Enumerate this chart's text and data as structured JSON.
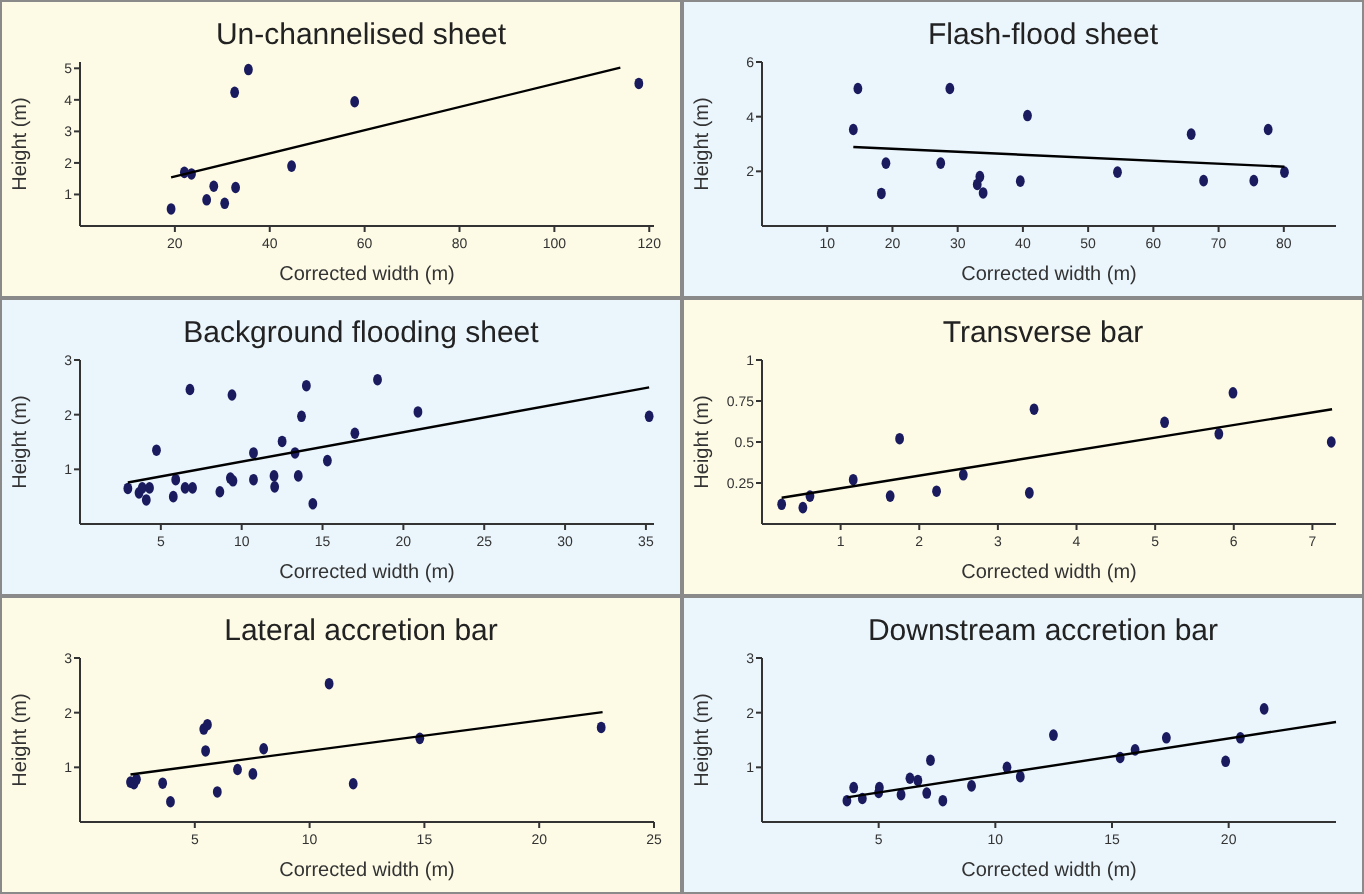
{
  "chart_data": [
    {
      "type": "scatter",
      "title": "Un-channelised sheet",
      "xlabel": "Corrected width (m)",
      "ylabel": "Height (m)",
      "xlim": [
        0,
        121
      ],
      "ylim": [
        0,
        5.2
      ],
      "xticks": [
        20,
        40,
        60,
        80,
        100,
        120
      ],
      "yticks": [
        1,
        2,
        3,
        4,
        5
      ],
      "grid": false,
      "series": [
        {
          "color": "#1a1a5e",
          "marker": "circle",
          "x": [
            19.2,
            22.0,
            23.5,
            26.7,
            28.2,
            30.5,
            32.8,
            32.6,
            35.5,
            44.6,
            57.9,
            117.8
          ],
          "values": [
            0.54,
            1.7,
            1.65,
            0.83,
            1.26,
            0.72,
            1.22,
            4.24,
            4.96,
            1.9,
            3.94,
            4.52
          ]
        },
        {
          "type": "line",
          "color": "#000000",
          "marker": "none",
          "line_style": "solid",
          "x": [
            19.2,
            113.9
          ],
          "values": [
            1.54,
            5.02
          ]
        }
      ]
    },
    {
      "type": "scatter",
      "title": "Flash-flood sheet",
      "xlabel": "Corrected width (m)",
      "ylabel": "Height (m)",
      "xlim": [
        0,
        88
      ],
      "ylim": [
        0,
        6
      ],
      "xticks": [
        10,
        20,
        30,
        40,
        50,
        60,
        70,
        80
      ],
      "yticks": [
        2,
        4,
        6
      ],
      "grid": false,
      "series": [
        {
          "color": "#1a1a5e",
          "marker": "circle",
          "x": [
            14.0,
            14.7,
            18.3,
            19.0,
            27.4,
            28.8,
            33.0,
            33.4,
            33.9,
            39.6,
            40.7,
            54.5,
            65.8,
            67.7,
            75.4,
            77.6,
            80.1
          ],
          "values": [
            3.53,
            5.03,
            1.19,
            2.3,
            2.3,
            5.03,
            1.52,
            1.81,
            1.21,
            1.64,
            4.04,
            1.97,
            3.36,
            1.66,
            1.66,
            3.53,
            1.97
          ]
        },
        {
          "type": "line",
          "color": "#000000",
          "marker": "none",
          "line_style": "solid",
          "x": [
            14.0,
            80.1
          ],
          "values": [
            2.89,
            2.17
          ]
        }
      ]
    },
    {
      "type": "scatter",
      "title": "Background flooding sheet",
      "xlabel": "Corrected width (m)",
      "ylabel": "Height (m)",
      "xlim": [
        0,
        35.5
      ],
      "ylim": [
        0,
        3
      ],
      "xticks": [
        5,
        10,
        15,
        20,
        25,
        30,
        35
      ],
      "yticks": [
        1,
        2,
        3
      ],
      "grid": false,
      "series": [
        {
          "color": "#1a1a5e",
          "marker": "circle",
          "x": [
            2.96,
            3.65,
            3.85,
            4.1,
            4.3,
            4.73,
            5.77,
            5.92,
            6.5,
            6.8,
            6.96,
            8.65,
            9.3,
            9.4,
            9.46,
            10.73,
            10.73,
            12.0,
            12.04,
            12.5,
            13.3,
            13.5,
            13.7,
            14.0,
            14.4,
            15.3,
            17.0,
            18.4,
            20.9,
            35.2
          ],
          "values": [
            0.65,
            0.57,
            0.66,
            0.44,
            0.66,
            1.35,
            0.5,
            0.81,
            0.66,
            2.46,
            0.66,
            0.59,
            0.84,
            2.36,
            0.79,
            1.3,
            0.81,
            0.88,
            0.68,
            1.51,
            1.3,
            0.88,
            1.97,
            2.53,
            0.37,
            1.16,
            1.66,
            2.64,
            2.05,
            1.97
          ]
        },
        {
          "type": "line",
          "color": "#000000",
          "marker": "none",
          "line_style": "solid",
          "x": [
            2.96,
            35.2
          ],
          "values": [
            0.76,
            2.5
          ]
        }
      ]
    },
    {
      "type": "scatter",
      "title": "Transverse bar",
      "xlabel": "Corrected width (m)",
      "ylabel": "Height (m)",
      "xlim": [
        0,
        7.3
      ],
      "ylim": [
        0,
        1
      ],
      "xticks": [
        1,
        2,
        3,
        4,
        5,
        6,
        7
      ],
      "yticks": [
        0.25,
        0.5,
        0.75,
        1
      ],
      "grid": false,
      "series": [
        {
          "color": "#1a1a5e",
          "marker": "circle",
          "x": [
            0.25,
            0.52,
            0.61,
            1.16,
            1.63,
            1.75,
            2.22,
            2.56,
            3.4,
            3.46,
            5.12,
            5.81,
            5.99,
            7.24
          ],
          "values": [
            0.12,
            0.1,
            0.17,
            0.27,
            0.17,
            0.52,
            0.2,
            0.3,
            0.19,
            0.7,
            0.62,
            0.55,
            0.8,
            0.5
          ]
        },
        {
          "type": "line",
          "color": "#000000",
          "marker": "none",
          "line_style": "solid",
          "x": [
            0.25,
            7.25
          ],
          "values": [
            0.16,
            0.7
          ]
        }
      ]
    },
    {
      "type": "scatter",
      "title": "Lateral accretion bar",
      "xlabel": "Corrected width (m)",
      "ylabel": "Height (m)",
      "xlim": [
        0,
        25
      ],
      "ylim": [
        0,
        3
      ],
      "xticks": [
        5,
        10,
        15,
        20,
        25
      ],
      "yticks": [
        1,
        2,
        3
      ],
      "grid": false,
      "series": [
        {
          "color": "#1a1a5e",
          "marker": "circle",
          "x": [
            2.2,
            2.35,
            2.46,
            3.6,
            3.94,
            5.39,
            5.47,
            5.55,
            5.98,
            6.86,
            7.53,
            8.0,
            10.85,
            11.9,
            14.8,
            22.7
          ],
          "values": [
            0.73,
            0.7,
            0.78,
            0.71,
            0.37,
            1.7,
            1.3,
            1.78,
            0.55,
            0.96,
            0.88,
            1.34,
            2.53,
            0.7,
            1.53,
            1.73
          ]
        },
        {
          "type": "line",
          "color": "#000000",
          "marker": "none",
          "line_style": "solid",
          "x": [
            2.2,
            22.76
          ],
          "values": [
            0.87,
            2.01
          ]
        }
      ]
    },
    {
      "type": "scatter",
      "title": "Downstream accretion bar",
      "xlabel": "Corrected width (m)",
      "ylabel": "Height (m)",
      "xlim": [
        0,
        24.6
      ],
      "ylim": [
        0,
        3
      ],
      "xticks": [
        5,
        10,
        15,
        20
      ],
      "yticks": [
        1,
        2,
        3
      ],
      "grid": false,
      "series": [
        {
          "color": "#1a1a5e",
          "marker": "circle",
          "x": [
            3.64,
            3.93,
            4.3,
            5.0,
            5.03,
            5.96,
            6.34,
            6.68,
            7.06,
            7.22,
            7.75,
            8.98,
            10.5,
            11.07,
            12.49,
            15.35,
            15.99,
            17.33,
            19.87,
            20.5,
            21.52
          ],
          "values": [
            0.39,
            0.63,
            0.43,
            0.54,
            0.63,
            0.5,
            0.8,
            0.76,
            0.53,
            1.13,
            0.39,
            0.66,
            1.0,
            0.83,
            1.59,
            1.18,
            1.32,
            1.54,
            1.11,
            1.54,
            2.07
          ]
        },
        {
          "type": "line",
          "color": "#000000",
          "marker": "none",
          "line_style": "solid",
          "x": [
            3.64,
            24.6
          ],
          "values": [
            0.45,
            1.83
          ]
        }
      ]
    }
  ]
}
